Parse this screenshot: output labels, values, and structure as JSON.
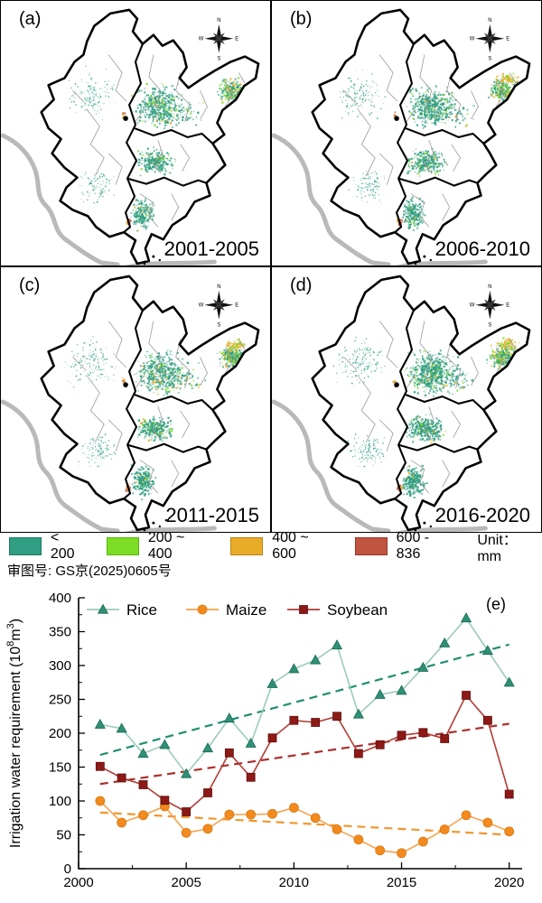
{
  "figure": {
    "panels": [
      {
        "label": "(a)",
        "period": "2001-2005"
      },
      {
        "label": "(b)",
        "period": "2006-2010"
      },
      {
        "label": "(c)",
        "period": "2011-2015"
      },
      {
        "label": "(d)",
        "period": "2016-2020"
      }
    ],
    "compass": {
      "n": "N",
      "e": "E",
      "s": "S",
      "w": "W"
    },
    "legend": {
      "items": [
        {
          "label": "< 200",
          "color": "#2f9e82",
          "border": "#1d7a62"
        },
        {
          "label": "200 ~ 400",
          "color": "#7ddd25",
          "border": "#58b50e"
        },
        {
          "label": "400 ~ 600",
          "color": "#e9ac29",
          "border": "#b98312"
        },
        {
          "label": "600 - 836",
          "color": "#c05441",
          "border": "#94372a"
        }
      ],
      "unit_label": "Unit： mm"
    },
    "approval_note": "审图号: GS京(2025)0605号"
  },
  "chart_data": {
    "type": "line",
    "panel_label": "(e)",
    "ylabel": "Irrigation water requirement (10⁸m³)",
    "ylabel_parts": {
      "prefix": "Irrigation water requirement (10",
      "sup1": "8",
      "mid": "m",
      "sup2": "3",
      "suffix": ")"
    },
    "xlim": [
      2000,
      2020.6
    ],
    "ylim": [
      0,
      400
    ],
    "xticks": [
      2000,
      2005,
      2010,
      2015,
      2020
    ],
    "yticks": [
      0,
      50,
      100,
      150,
      200,
      250,
      300,
      350,
      400
    ],
    "grid": false,
    "legend_position": "top-left-inside",
    "x": [
      2001,
      2002,
      2003,
      2004,
      2005,
      2006,
      2007,
      2008,
      2009,
      2010,
      2011,
      2012,
      2013,
      2014,
      2015,
      2016,
      2017,
      2018,
      2019,
      2020
    ],
    "series": [
      {
        "name": "Rice",
        "marker": "triangle",
        "line_color": "#9ccbbc",
        "marker_color": "#2e9076",
        "marker_edge": "#1c6b52",
        "trend_color": "#1e8e70",
        "values": [
          213,
          207,
          170,
          183,
          140,
          178,
          222,
          185,
          273,
          295,
          308,
          330,
          228,
          257,
          263,
          297,
          333,
          370,
          322,
          275
        ],
        "trend": {
          "x": [
            2001,
            2020
          ],
          "y": [
            168,
            331
          ]
        }
      },
      {
        "name": "Maize",
        "marker": "circle",
        "line_color": "#f7a24c",
        "marker_color": "#f28a1e",
        "marker_edge": "#d97a14",
        "trend_color": "#f2962f",
        "values": [
          100,
          68,
          79,
          92,
          53,
          59,
          80,
          80,
          81,
          90,
          75,
          58,
          43,
          27,
          23,
          40,
          58,
          79,
          68,
          55
        ],
        "trend": {
          "x": [
            2001,
            2020
          ],
          "y": [
            83,
            50
          ]
        }
      },
      {
        "name": "Soybean",
        "marker": "square",
        "line_color": "#b23c35",
        "marker_color": "#8d1a17",
        "marker_edge": "#5e0f0d",
        "trend_color": "#ad2f2c",
        "values": [
          151,
          134,
          124,
          101,
          84,
          112,
          171,
          135,
          193,
          219,
          216,
          225,
          170,
          183,
          197,
          201,
          192,
          256,
          219,
          110
        ],
        "trend": {
          "x": [
            2001,
            2020
          ],
          "y": [
            125,
            214
          ]
        }
      }
    ]
  }
}
